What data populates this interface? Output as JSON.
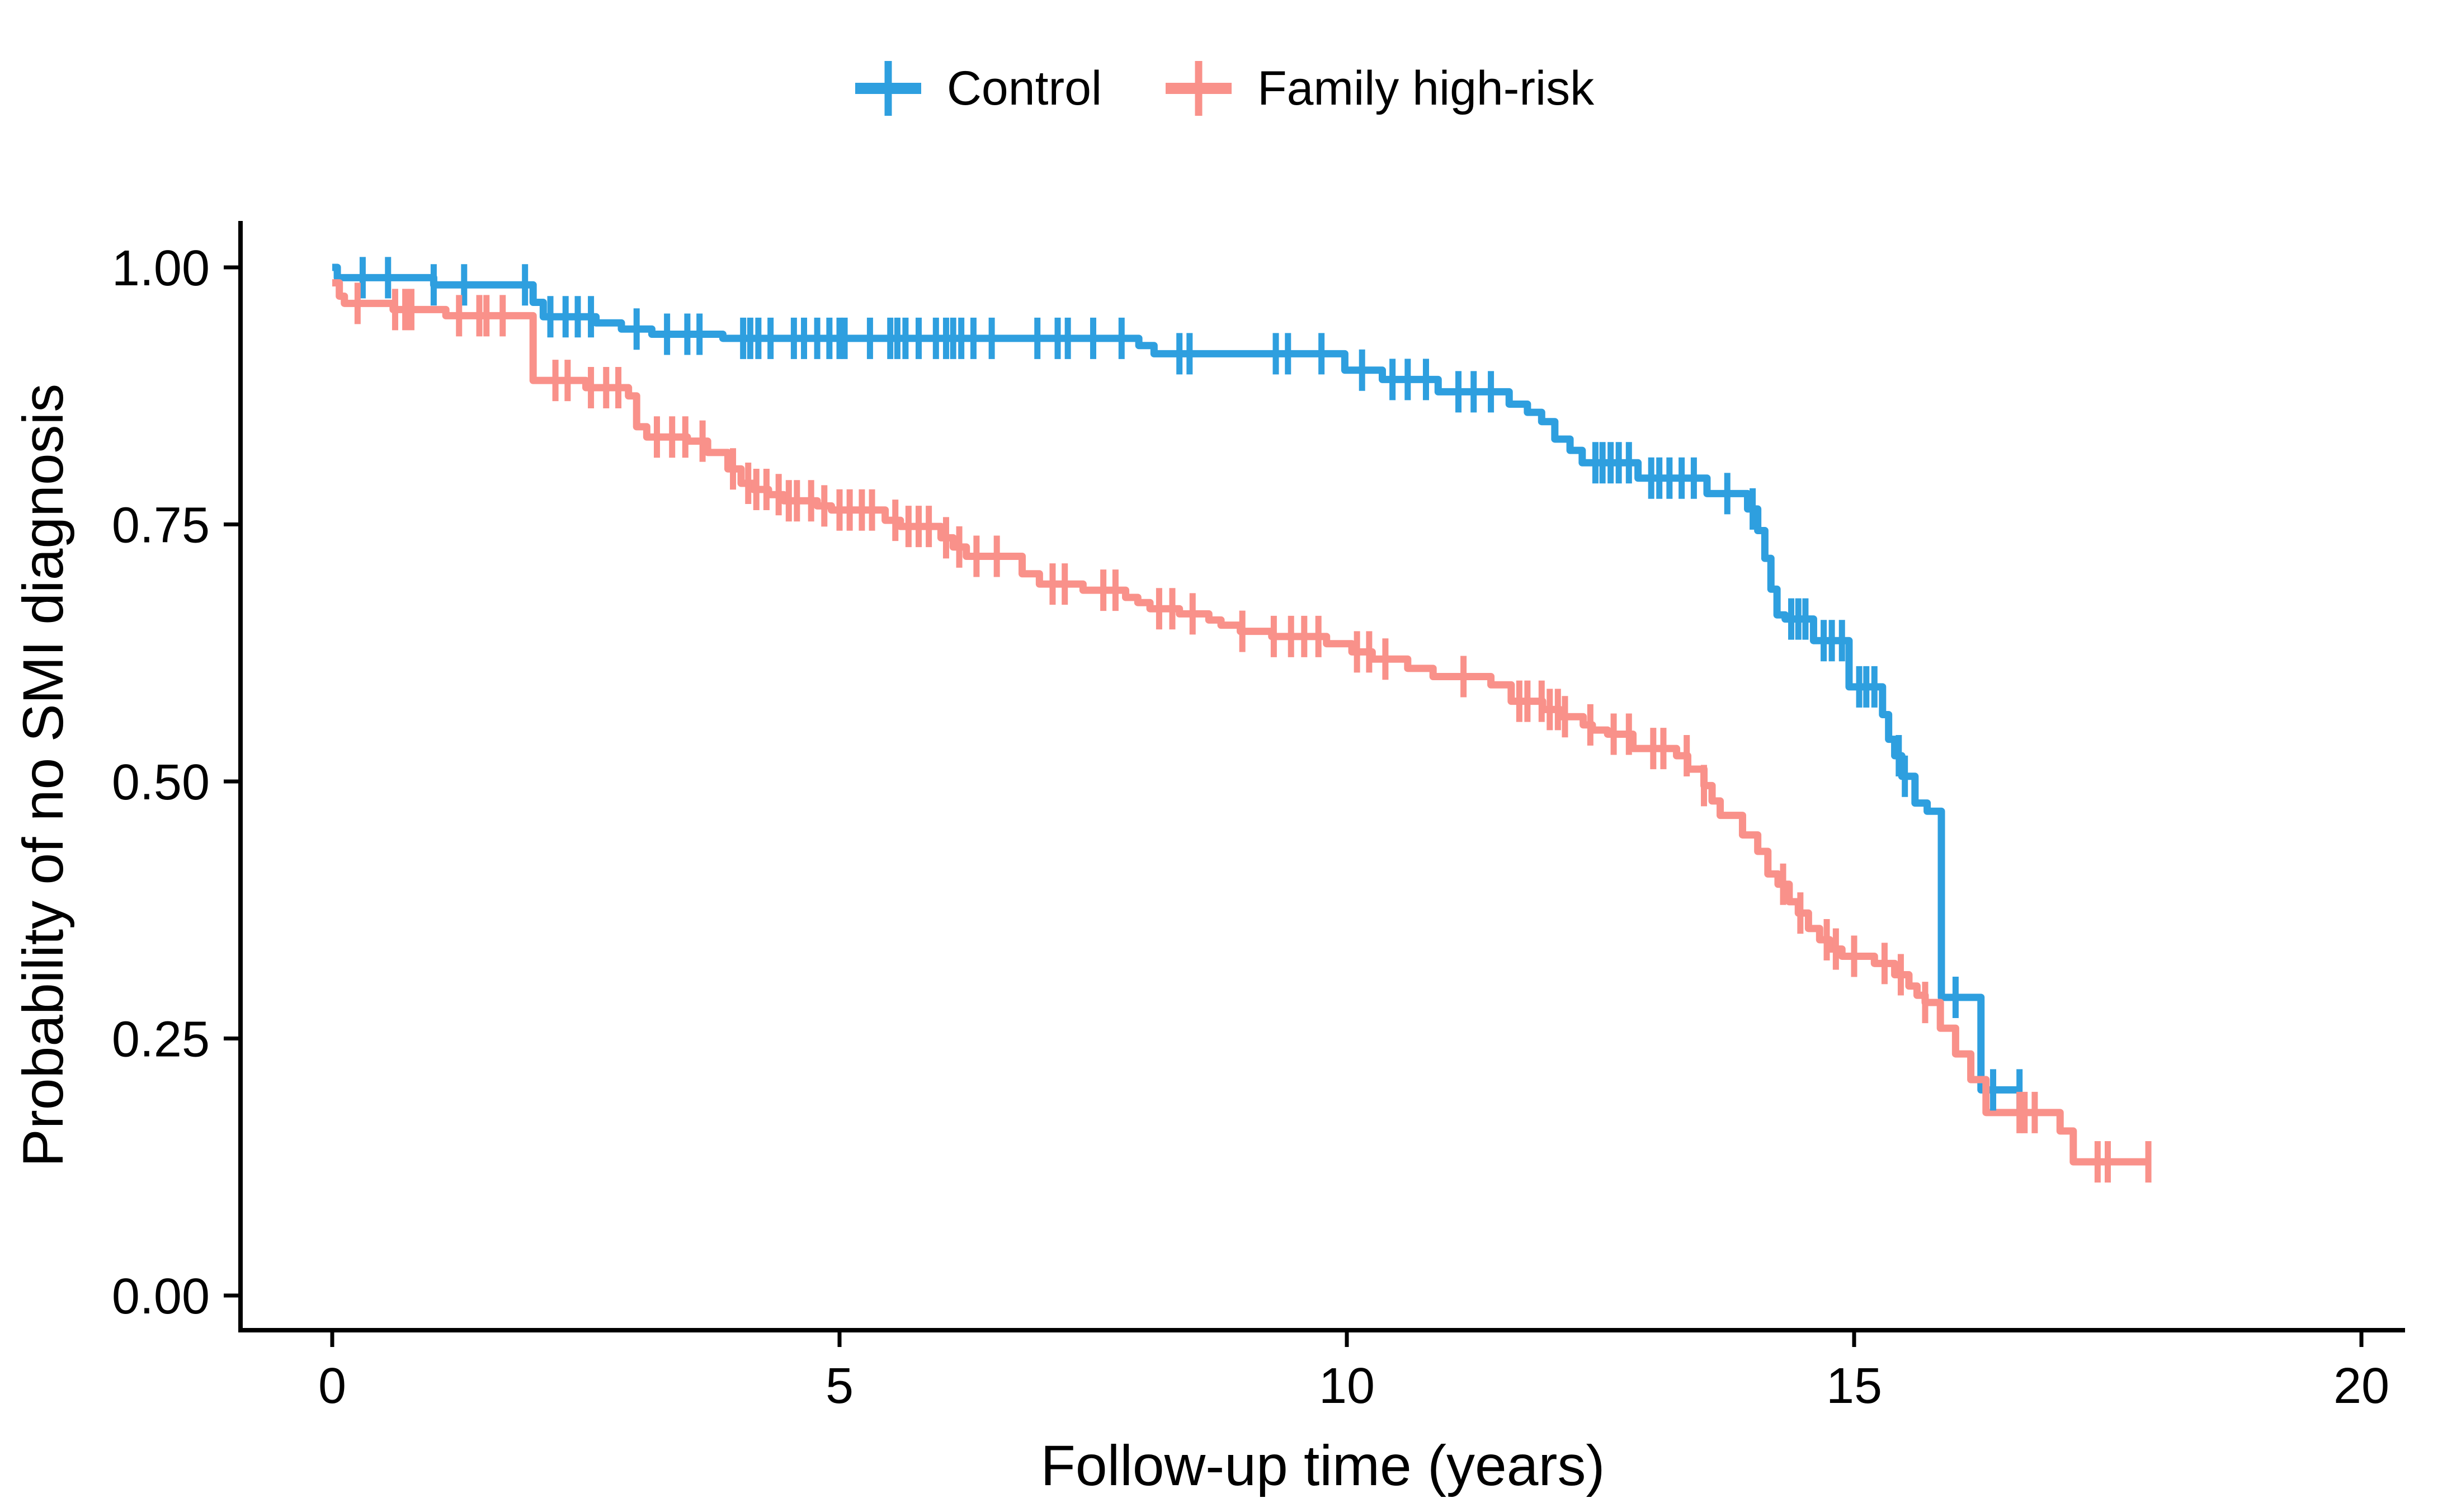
{
  "chart_data": {
    "type": "line",
    "subtype": "kaplan-meier-step",
    "title": "",
    "xlabel": "Follow-up time (years)",
    "ylabel": "Probability of no SMI diagnosis",
    "xlim": [
      0,
      20
    ],
    "ylim": [
      0.0,
      1.0
    ],
    "xticks": [
      0,
      5,
      10,
      15,
      20
    ],
    "ytick_values": [
      0.0,
      0.25,
      0.5,
      0.75,
      1.0
    ],
    "ytick_labels": [
      "0.00",
      "0.25",
      "0.50",
      "0.75",
      "1.00"
    ],
    "grid": "off",
    "legend_position": "top-center",
    "background_color": "#ffffff",
    "axis_color": "#000000",
    "series": [
      {
        "name": "Control",
        "color": "#2E9FDF",
        "end_time": 16.65,
        "steps": [
          [
            0,
            1.0
          ],
          [
            0.05,
            0.99
          ],
          [
            1.0,
            0.983
          ],
          [
            1.98,
            0.966
          ],
          [
            2.08,
            0.952
          ],
          [
            2.6,
            0.946
          ],
          [
            2.85,
            0.94
          ],
          [
            3.15,
            0.935
          ],
          [
            3.85,
            0.931
          ],
          [
            7.95,
            0.924
          ],
          [
            8.1,
            0.916
          ],
          [
            9.98,
            0.9
          ],
          [
            10.35,
            0.891
          ],
          [
            10.9,
            0.879
          ],
          [
            11.6,
            0.867
          ],
          [
            11.78,
            0.859
          ],
          [
            11.92,
            0.85
          ],
          [
            12.05,
            0.833
          ],
          [
            12.2,
            0.822
          ],
          [
            12.32,
            0.81
          ],
          [
            12.87,
            0.795
          ],
          [
            13.55,
            0.78
          ],
          [
            13.95,
            0.765
          ],
          [
            14.05,
            0.744
          ],
          [
            14.12,
            0.717
          ],
          [
            14.18,
            0.687
          ],
          [
            14.24,
            0.662
          ],
          [
            14.32,
            0.658
          ],
          [
            14.6,
            0.637
          ],
          [
            14.95,
            0.592
          ],
          [
            15.28,
            0.565
          ],
          [
            15.34,
            0.541
          ],
          [
            15.4,
            0.525
          ],
          [
            15.47,
            0.505
          ],
          [
            15.6,
            0.479
          ],
          [
            15.72,
            0.471
          ],
          [
            15.86,
            0.29
          ],
          [
            16.25,
            0.2
          ]
        ],
        "censor_times": [
          0.3,
          0.55,
          1.0,
          1.3,
          1.9,
          2.15,
          2.3,
          2.42,
          2.55,
          3.0,
          3.3,
          3.5,
          3.62,
          4.05,
          4.12,
          4.2,
          4.32,
          4.55,
          4.65,
          4.78,
          4.9,
          5.0,
          5.05,
          5.3,
          5.5,
          5.57,
          5.65,
          5.78,
          5.95,
          6.05,
          6.12,
          6.2,
          6.32,
          6.5,
          6.95,
          7.15,
          7.25,
          7.5,
          7.78,
          8.35,
          8.45,
          9.3,
          9.42,
          9.75,
          10.15,
          10.45,
          10.6,
          10.78,
          11.1,
          11.25,
          11.42,
          12.45,
          12.52,
          12.6,
          12.68,
          12.78,
          13.0,
          13.08,
          13.18,
          13.3,
          13.42,
          13.75,
          14.0,
          14.38,
          14.45,
          14.52,
          14.7,
          14.78,
          14.88,
          15.05,
          15.12,
          15.2,
          15.44,
          15.5,
          16.0,
          16.37,
          16.63
        ]
      },
      {
        "name": "Family high-risk",
        "color": "#F9918A",
        "end_time": 17.9,
        "steps": [
          [
            0,
            0.985
          ],
          [
            0.07,
            0.972
          ],
          [
            0.12,
            0.965
          ],
          [
            0.6,
            0.959
          ],
          [
            1.12,
            0.953
          ],
          [
            1.98,
            0.89
          ],
          [
            2.5,
            0.883
          ],
          [
            2.92,
            0.875
          ],
          [
            3.0,
            0.845
          ],
          [
            3.1,
            0.835
          ],
          [
            3.5,
            0.831
          ],
          [
            3.7,
            0.82
          ],
          [
            3.9,
            0.804
          ],
          [
            4.03,
            0.79
          ],
          [
            4.15,
            0.784
          ],
          [
            4.3,
            0.779
          ],
          [
            4.45,
            0.773
          ],
          [
            4.78,
            0.768
          ],
          [
            4.92,
            0.764
          ],
          [
            5.45,
            0.754
          ],
          [
            5.6,
            0.748
          ],
          [
            6.0,
            0.737
          ],
          [
            6.12,
            0.728
          ],
          [
            6.25,
            0.719
          ],
          [
            6.8,
            0.702
          ],
          [
            6.97,
            0.692
          ],
          [
            7.4,
            0.686
          ],
          [
            7.82,
            0.679
          ],
          [
            7.94,
            0.674
          ],
          [
            8.06,
            0.668
          ],
          [
            8.35,
            0.663
          ],
          [
            8.64,
            0.657
          ],
          [
            8.76,
            0.652
          ],
          [
            8.95,
            0.646
          ],
          [
            9.26,
            0.641
          ],
          [
            9.8,
            0.634
          ],
          [
            10.05,
            0.626
          ],
          [
            10.25,
            0.619
          ],
          [
            10.6,
            0.61
          ],
          [
            10.85,
            0.602
          ],
          [
            11.42,
            0.594
          ],
          [
            11.62,
            0.578
          ],
          [
            11.93,
            0.57
          ],
          [
            12.1,
            0.563
          ],
          [
            12.33,
            0.555
          ],
          [
            12.42,
            0.55
          ],
          [
            12.57,
            0.546
          ],
          [
            12.82,
            0.532
          ],
          [
            13.25,
            0.525
          ],
          [
            13.36,
            0.512
          ],
          [
            13.52,
            0.496
          ],
          [
            13.6,
            0.481
          ],
          [
            13.68,
            0.467
          ],
          [
            13.9,
            0.448
          ],
          [
            14.05,
            0.432
          ],
          [
            14.15,
            0.41
          ],
          [
            14.25,
            0.4
          ],
          [
            14.36,
            0.383
          ],
          [
            14.45,
            0.372
          ],
          [
            14.55,
            0.357
          ],
          [
            14.66,
            0.346
          ],
          [
            14.76,
            0.337
          ],
          [
            14.88,
            0.33
          ],
          [
            15.2,
            0.323
          ],
          [
            15.4,
            0.312
          ],
          [
            15.54,
            0.301
          ],
          [
            15.62,
            0.292
          ],
          [
            15.7,
            0.285
          ],
          [
            15.85,
            0.26
          ],
          [
            16.0,
            0.235
          ],
          [
            16.15,
            0.21
          ],
          [
            16.3,
            0.178
          ],
          [
            17.03,
            0.16
          ],
          [
            17.16,
            0.13
          ]
        ],
        "censor_times": [
          0.25,
          0.62,
          0.72,
          0.78,
          1.25,
          1.45,
          1.52,
          1.68,
          2.2,
          2.32,
          2.55,
          2.7,
          2.82,
          3.2,
          3.35,
          3.48,
          3.65,
          3.95,
          4.1,
          4.18,
          4.28,
          4.4,
          4.5,
          4.58,
          4.72,
          4.85,
          5.0,
          5.1,
          5.22,
          5.32,
          5.55,
          5.68,
          5.78,
          5.88,
          6.05,
          6.18,
          6.35,
          6.55,
          7.1,
          7.22,
          7.6,
          7.72,
          8.15,
          8.28,
          8.48,
          8.97,
          9.28,
          9.45,
          9.58,
          9.72,
          10.1,
          10.22,
          10.38,
          11.15,
          11.7,
          11.78,
          11.92,
          12.0,
          12.08,
          12.15,
          12.4,
          12.63,
          12.78,
          13.02,
          13.12,
          13.35,
          13.52,
          14.3,
          14.47,
          14.73,
          14.82,
          15.0,
          15.3,
          15.46,
          15.7,
          16.63,
          16.68,
          16.78,
          17.4,
          17.5,
          17.9
        ]
      }
    ]
  }
}
